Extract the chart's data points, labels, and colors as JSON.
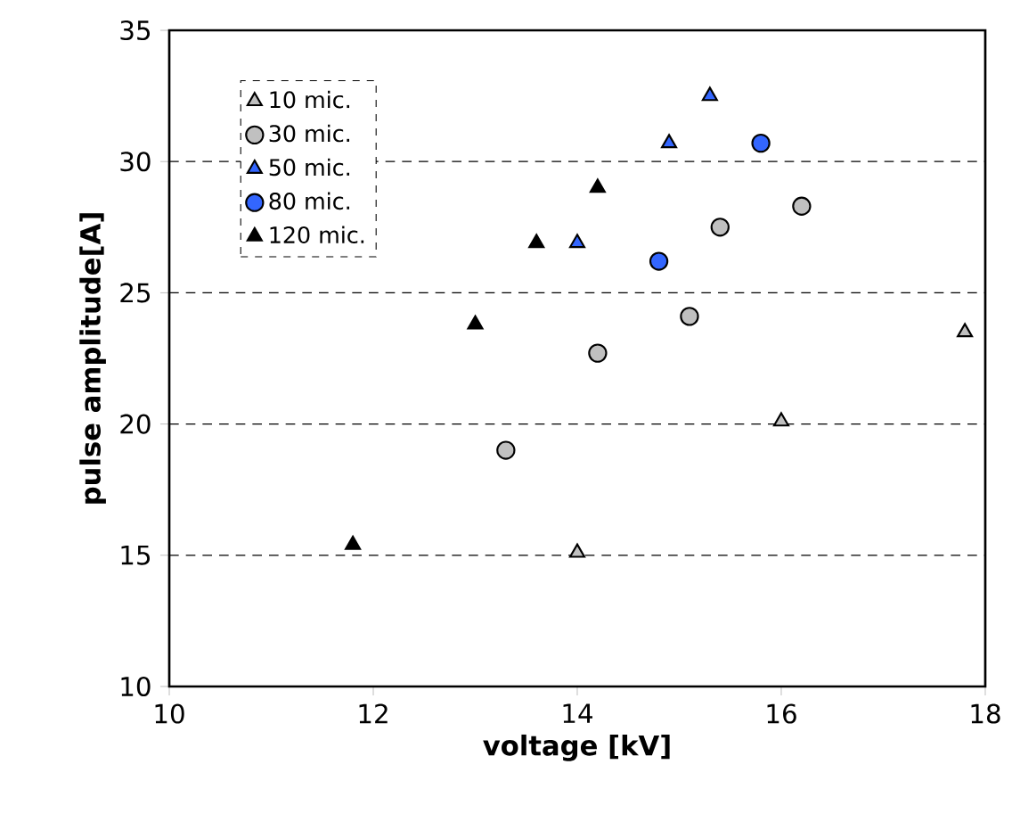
{
  "chart_data": {
    "type": "scatter",
    "xlabel": "voltage [kV]",
    "ylabel": "pulse amplitude[A]",
    "xlim": [
      10,
      18
    ],
    "xticks": [
      10,
      12,
      14,
      16,
      18
    ],
    "ylim": [
      10,
      35
    ],
    "yticks": [
      10,
      15,
      20,
      25,
      30,
      35
    ],
    "grid": "y",
    "legend": "top left",
    "series": [
      {
        "name": "10 mic.",
        "color": "#c0c0c0",
        "marker": "triangle",
        "x": [
          14.0,
          16.0,
          17.8
        ],
        "values": [
          15.1,
          20.1,
          23.5
        ]
      },
      {
        "name": "30 mic.",
        "color": "#c0c0c0",
        "marker": "circle",
        "x": [
          13.3,
          14.2,
          15.1,
          15.4,
          16.2
        ],
        "values": [
          19.0,
          22.7,
          24.1,
          27.5,
          28.3
        ]
      },
      {
        "name": "50 mic.",
        "color": "#3366ff",
        "marker": "triangle",
        "x": [
          14.0,
          14.9,
          15.3
        ],
        "values": [
          26.9,
          30.7,
          32.5
        ]
      },
      {
        "name": "80 mic.",
        "color": "#3366ff",
        "marker": "circle",
        "x": [
          14.8,
          15.8
        ],
        "values": [
          26.2,
          30.7
        ]
      },
      {
        "name": "120 mic.",
        "color": "#000000",
        "marker": "triangle",
        "x": [
          11.8,
          13.0,
          13.6,
          14.2
        ],
        "values": [
          15.4,
          23.8,
          26.9,
          29.0
        ]
      }
    ]
  }
}
